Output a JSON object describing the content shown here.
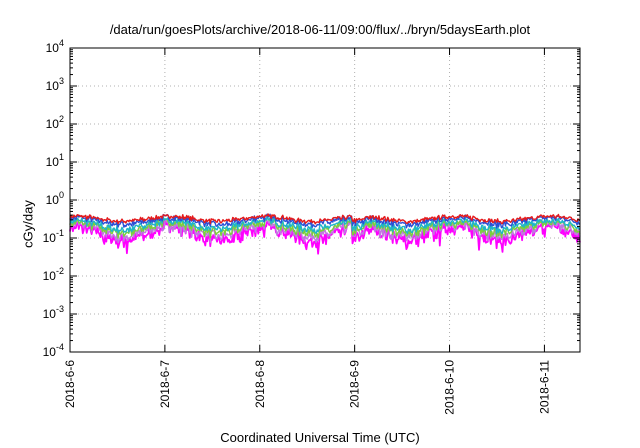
{
  "chart_data": {
    "type": "line",
    "title": "/data/run/goesPlots/archive/2018-06-11/09:00/flux/../bryn/5daysEarth.plot",
    "xlabel": "Coordinated Universal Time (UTC)",
    "ylabel": "cGy/day",
    "xlim": [
      "2018-06-06T00:00",
      "2018-06-11T09:00"
    ],
    "x_ticks": [
      "2018-6-6",
      "2018-6-7",
      "2018-6-8",
      "2018-6-9",
      "2018-6-10",
      "2018-6-11"
    ],
    "y_scale": "log",
    "ylim": [
      0.0001,
      10000
    ],
    "y_ticks": [
      {
        "base": "10",
        "exp": "-4"
      },
      {
        "base": "10",
        "exp": "-3"
      },
      {
        "base": "10",
        "exp": "-2"
      },
      {
        "base": "10",
        "exp": "-1"
      },
      {
        "base": "10",
        "exp": "0"
      },
      {
        "base": "10",
        "exp": "1"
      },
      {
        "base": "10",
        "exp": "2"
      },
      {
        "base": "10",
        "exp": "3"
      },
      {
        "base": "10",
        "exp": "4"
      }
    ],
    "grid": true,
    "series": [
      {
        "color": "#e41a1c",
        "approx_level": 0.32
      },
      {
        "color": "#2b4fd6",
        "approx_level": 0.28
      },
      {
        "color": "#1fb5c9",
        "approx_level": 0.22
      },
      {
        "color": "#7ccf3c",
        "approx_level": 0.19
      },
      {
        "color": "#c07ae0",
        "approx_level": 0.16
      },
      {
        "color": "#ff00ff",
        "approx_level": 0.13
      }
    ]
  }
}
